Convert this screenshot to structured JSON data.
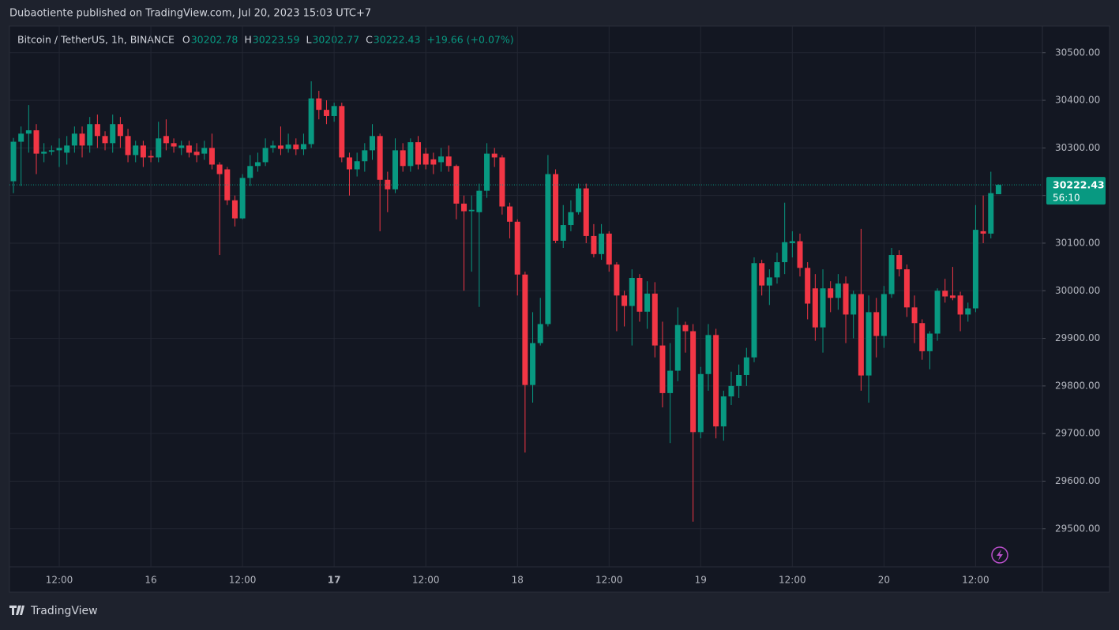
{
  "chart_data": {
    "type": "candlestick",
    "publisher": "Dubaotiente published on TradingView.com, Jul 20, 2023 15:03 UTC+7",
    "symbol": "Bitcoin / TetherUS, 1h, BINANCE",
    "legend_labels": {
      "open": "O",
      "high": "H",
      "low": "L",
      "close": "C"
    },
    "change": "+19.66 (+0.07%)",
    "countdown": "56:10",
    "brand": "TradingView",
    "up_color": "#089981",
    "down_color": "#f23645",
    "categories": [
      null,
      null,
      null,
      null,
      null,
      null,
      "12:00",
      null,
      null,
      null,
      null,
      null,
      null,
      null,
      null,
      null,
      null,
      null,
      "16",
      null,
      null,
      null,
      null,
      null,
      null,
      null,
      null,
      null,
      null,
      null,
      "12:00",
      null,
      null,
      null,
      null,
      null,
      null,
      null,
      null,
      null,
      null,
      null,
      "17",
      null,
      null,
      null,
      null,
      null,
      null,
      null,
      null,
      null,
      null,
      null,
      "12:00",
      null,
      null,
      null,
      null,
      null,
      null,
      null,
      null,
      null,
      null,
      null,
      "18",
      null,
      null,
      null,
      null,
      null,
      null,
      null,
      null,
      null,
      null,
      null,
      "12:00",
      null,
      null,
      null,
      null,
      null,
      null,
      null,
      null,
      null,
      null,
      null,
      "19",
      null,
      null,
      null,
      null,
      null,
      null,
      null,
      null,
      null,
      null,
      null,
      "12:00",
      null,
      null,
      null,
      null,
      null,
      null,
      null,
      null,
      null,
      null,
      null,
      "20",
      null,
      null,
      null,
      null,
      null,
      null,
      null,
      null,
      null,
      null,
      null,
      "12:00",
      null,
      null,
      null
    ],
    "open": [
      30230,
      30313,
      30330,
      30337,
      30288,
      30292,
      30295,
      30290,
      30305,
      30330,
      30305,
      30350,
      30325,
      30310,
      30350,
      30325,
      30285,
      30305,
      30283,
      30280,
      30325,
      30310,
      30300,
      30305,
      30292,
      30288,
      30300,
      30265,
      30255,
      30190,
      30152,
      30237,
      30262,
      30270,
      30300,
      30305,
      30298,
      30307,
      30297,
      30308,
      30404,
      30380,
      30367,
      30388,
      30280,
      30255,
      30272,
      30295,
      30325,
      30233,
      30213,
      30295,
      30262,
      30312,
      30288,
      30276,
      30270,
      30282,
      30262,
      30183,
      30167,
      30165,
      30210,
      30288,
      30280,
      30177,
      30145,
      30034,
      29802,
      29890,
      29930,
      30245,
      30105,
      30138,
      30165,
      30215,
      30115,
      30077,
      30120,
      30055,
      29990,
      29968,
      30027,
      29956,
      29994,
      29885,
      29785,
      29832,
      29928,
      29915,
      29703,
      29825,
      29907,
      29715,
      29778,
      29800,
      29823,
      29860,
      30058,
      30011,
      30028,
      30060,
      30100,
      30104,
      30048,
      30005,
      29923,
      30005,
      29985,
      30015,
      29950,
      29993,
      29822,
      29955,
      29905,
      29993,
      30075,
      30045,
      29965,
      29932,
      29873,
      29910,
      30000,
      29990,
      29990,
      29950,
      29963,
      30125,
      30120,
      30202.78
    ],
    "high": [
      30321,
      30345,
      30390,
      30350,
      30310,
      30305,
      30320,
      30325,
      30345,
      30345,
      30365,
      30370,
      30335,
      30370,
      30365,
      30340,
      30315,
      30315,
      30295,
      30355,
      30360,
      30320,
      30315,
      30315,
      30310,
      30315,
      30330,
      30270,
      30260,
      30200,
      30245,
      30285,
      30290,
      30320,
      30315,
      30345,
      30330,
      30320,
      30330,
      30440,
      30420,
      30400,
      30395,
      30395,
      30290,
      30290,
      30310,
      30350,
      30330,
      30250,
      30320,
      30310,
      30320,
      30325,
      30300,
      30290,
      30300,
      30305,
      30265,
      30200,
      30200,
      30225,
      30310,
      30300,
      30285,
      30185,
      30150,
      30040,
      29955,
      29985,
      30285,
      30255,
      30180,
      30190,
      30225,
      30225,
      30140,
      30140,
      30125,
      30060,
      30000,
      30045,
      30035,
      30020,
      30018,
      29935,
      29890,
      29965,
      29935,
      29930,
      29840,
      29930,
      29920,
      29790,
      29830,
      29845,
      29880,
      30070,
      30065,
      30045,
      30080,
      30185,
      30125,
      30120,
      30060,
      30035,
      30045,
      30020,
      30035,
      30030,
      30000,
      30130,
      29990,
      29985,
      30010,
      30090,
      30085,
      30055,
      29990,
      29940,
      29915,
      30005,
      30025,
      30050,
      29998,
      29975,
      30180,
      30200,
      30250,
      30223.59
    ],
    "low": [
      30205,
      30220,
      30290,
      30245,
      30270,
      30285,
      30260,
      30265,
      30290,
      30280,
      30290,
      30300,
      30295,
      30290,
      30300,
      30270,
      30270,
      30260,
      30270,
      30270,
      30295,
      30290,
      30285,
      30280,
      30270,
      30275,
      30255,
      30075,
      30180,
      30135,
      30150,
      30220,
      30250,
      30262,
      30290,
      30285,
      30290,
      30285,
      30285,
      30300,
      30360,
      30350,
      30355,
      30270,
      30200,
      30240,
      30250,
      30275,
      30125,
      30165,
      30205,
      30250,
      30250,
      30255,
      30255,
      30245,
      30250,
      30250,
      30150,
      30000,
      30040,
      29966,
      30195,
      30260,
      30160,
      30110,
      29990,
      29660,
      29765,
      29885,
      29925,
      30100,
      30090,
      30125,
      30160,
      30100,
      30070,
      30065,
      30040,
      29915,
      29925,
      29885,
      29935,
      29920,
      29860,
      29755,
      29680,
      29810,
      29870,
      29515,
      29690,
      29790,
      29690,
      29685,
      29760,
      29775,
      29800,
      29850,
      29990,
      29970,
      30015,
      30035,
      30070,
      30030,
      29940,
      29895,
      29870,
      29955,
      29960,
      29890,
      29900,
      29790,
      29765,
      29860,
      29880,
      29985,
      30030,
      29945,
      29890,
      29855,
      29835,
      29895,
      29975,
      29980,
      29915,
      29935,
      29955,
      30100,
      30110,
      30202.77
    ],
    "close": [
      30313,
      30330,
      30337,
      30288,
      30292,
      30295,
      30300,
      30305,
      30330,
      30305,
      30350,
      30325,
      30310,
      30350,
      30325,
      30285,
      30305,
      30280,
      30280,
      30320,
      30310,
      30303,
      30305,
      30290,
      30285,
      30300,
      30265,
      30245,
      30190,
      30152,
      30237,
      30262,
      30270,
      30300,
      30305,
      30298,
      30307,
      30297,
      30308,
      30404,
      30380,
      30367,
      30388,
      30280,
      30255,
      30272,
      30295,
      30325,
      30233,
      30213,
      30295,
      30262,
      30312,
      30265,
      30265,
      30265,
      30282,
      30262,
      30183,
      30167,
      30170,
      30210,
      30288,
      30280,
      30177,
      30145,
      30034,
      29802,
      29890,
      29930,
      30245,
      30105,
      30138,
      30165,
      30215,
      30115,
      30077,
      30120,
      30055,
      29990,
      29968,
      30027,
      29956,
      29994,
      29885,
      29785,
      29832,
      29928,
      29915,
      29703,
      29825,
      29907,
      29715,
      29778,
      29800,
      29823,
      29860,
      30058,
      30011,
      30028,
      30060,
      30102,
      30104,
      30048,
      29973,
      29923,
      30005,
      29985,
      30015,
      29950,
      29993,
      29822,
      29955,
      29905,
      29993,
      30075,
      30045,
      29965,
      29932,
      29873,
      29910,
      30000,
      29988,
      29985,
      29950,
      29963,
      30128,
      30120,
      30205,
      30222.43
    ],
    "ylim": [
      29420,
      30556
    ],
    "yticks": [
      {
        "value": 29500,
        "label": "29500.00"
      },
      {
        "value": 29600,
        "label": "29600.00"
      },
      {
        "value": 29700,
        "label": "29700.00"
      },
      {
        "value": 29800,
        "label": "29800.00"
      },
      {
        "value": 29900,
        "label": "29900.00"
      },
      {
        "value": 30000,
        "label": "30000.00"
      },
      {
        "value": 30100,
        "label": "30100.00"
      },
      {
        "value": 30200,
        "label": "30200.00"
      },
      {
        "value": 30300,
        "label": "30300.00"
      },
      {
        "value": 30400,
        "label": "30400.00"
      },
      {
        "value": 30500,
        "label": "30500.00"
      }
    ],
    "grid": true
  }
}
